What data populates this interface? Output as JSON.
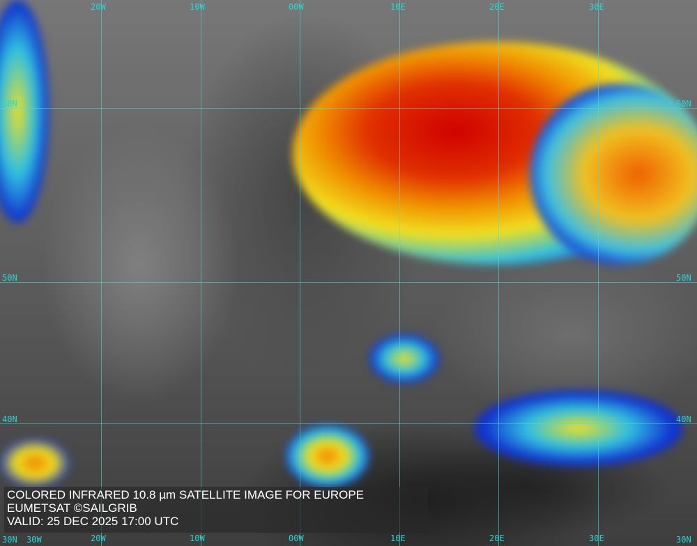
{
  "caption": {
    "line1": "COLORED INFRARED 10.8 µm SATELLITE IMAGE FOR EUROPE",
    "line2": "EUMETSAT ©SAILGRIB",
    "line3": "VALID:  25 DEC 2025 17:00 UTC"
  },
  "grid": {
    "top_longitudes": [
      "20W",
      "10W",
      "00W",
      "10E",
      "20E",
      "30E"
    ],
    "bottom_longitudes": [
      "30W",
      "20W",
      "10W",
      "00W",
      "10E",
      "20E",
      "30E"
    ],
    "left_latitudes": [
      "60N",
      "50N",
      "40N",
      "30N"
    ],
    "right_latitudes": [
      "60N",
      "50N",
      "40N",
      "30N"
    ]
  },
  "colors": {
    "grid": "#22d8d8",
    "cloud_cold": "#e00000",
    "cloud_mid": "#f0e020",
    "cloud_warm": "#2040e0"
  }
}
